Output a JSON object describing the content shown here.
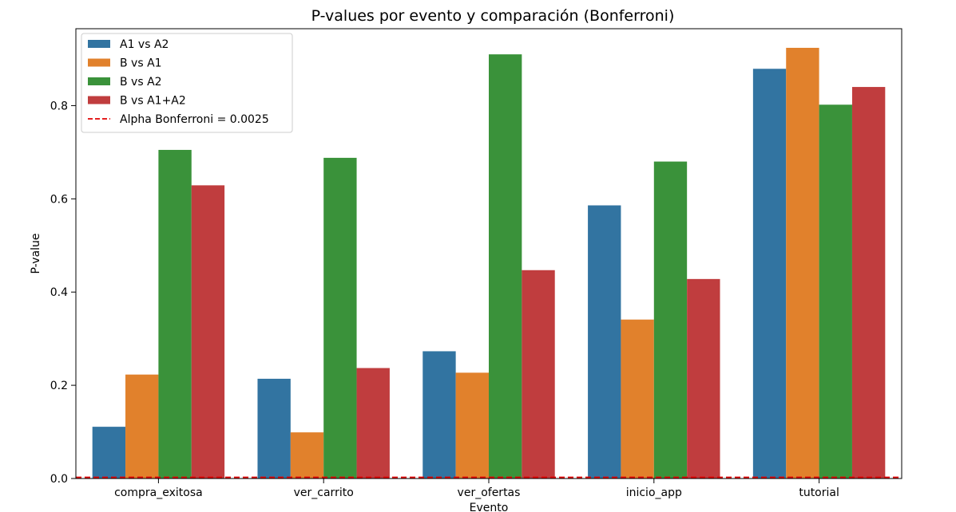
{
  "chart_data": {
    "type": "bar",
    "title": "P-values por evento y comparación (Bonferroni)",
    "xlabel": "Evento",
    "ylabel": "P-value",
    "ylim": [
      0,
      0.965
    ],
    "yticks": [
      "0.0",
      "0.2",
      "0.4",
      "0.6",
      "0.8"
    ],
    "categories": [
      "compra_exitosa",
      "ver_carrito",
      "ver_ofertas",
      "inicio_app",
      "tutorial"
    ],
    "series": [
      {
        "name": "A1 vs A2",
        "color": "#3274a1",
        "values": [
          0.111,
          0.214,
          0.273,
          0.586,
          0.879
        ]
      },
      {
        "name": "B vs A1",
        "color": "#e1812c",
        "values": [
          0.223,
          0.099,
          0.227,
          0.341,
          0.924
        ]
      },
      {
        "name": "B vs A2",
        "color": "#3a923a",
        "values": [
          0.705,
          0.688,
          0.91,
          0.68,
          0.802
        ]
      },
      {
        "name": "B vs A1+A2",
        "color": "#c03d3e",
        "values": [
          0.629,
          0.237,
          0.447,
          0.428,
          0.84
        ]
      }
    ],
    "reference_line": {
      "label": "Alpha Bonferroni = 0.0025",
      "value": 0.0025,
      "color": "#e00000",
      "style": "dashed"
    },
    "legend_position": "top-left",
    "grid": false
  }
}
